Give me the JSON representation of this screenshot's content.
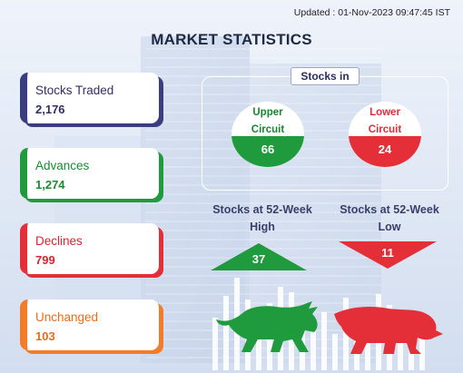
{
  "updated": "Updated : 01-Nov-2023 09:47:45 IST",
  "title": "MARKET STATISTICS",
  "cards": {
    "traded": {
      "label": "Stocks Traded",
      "value": "2,176"
    },
    "advances": {
      "label": "Advances",
      "value": "1,274"
    },
    "declines": {
      "label": "Declines",
      "value": "799"
    },
    "unchanged": {
      "label": "Unchanged",
      "value": "103"
    }
  },
  "stocks_in": {
    "label": "Stocks in",
    "upper": {
      "line1": "Upper",
      "line2": "Circuit",
      "value": "66"
    },
    "lower": {
      "line1": "Lower",
      "line2": "Circuit",
      "value": "24"
    }
  },
  "week52": {
    "high_line1": "Stocks at 52-Week",
    "high_line2": "High",
    "high_value": "37",
    "low_line1": "Stocks at 52-Week",
    "low_line2": "Low",
    "low_value": "11"
  },
  "colors": {
    "green": "#1f9a3c",
    "red": "#e42f39",
    "orange": "#f37b29",
    "navy": "#3b3e7e"
  },
  "icons": [
    "bull-icon",
    "bear-icon"
  ]
}
